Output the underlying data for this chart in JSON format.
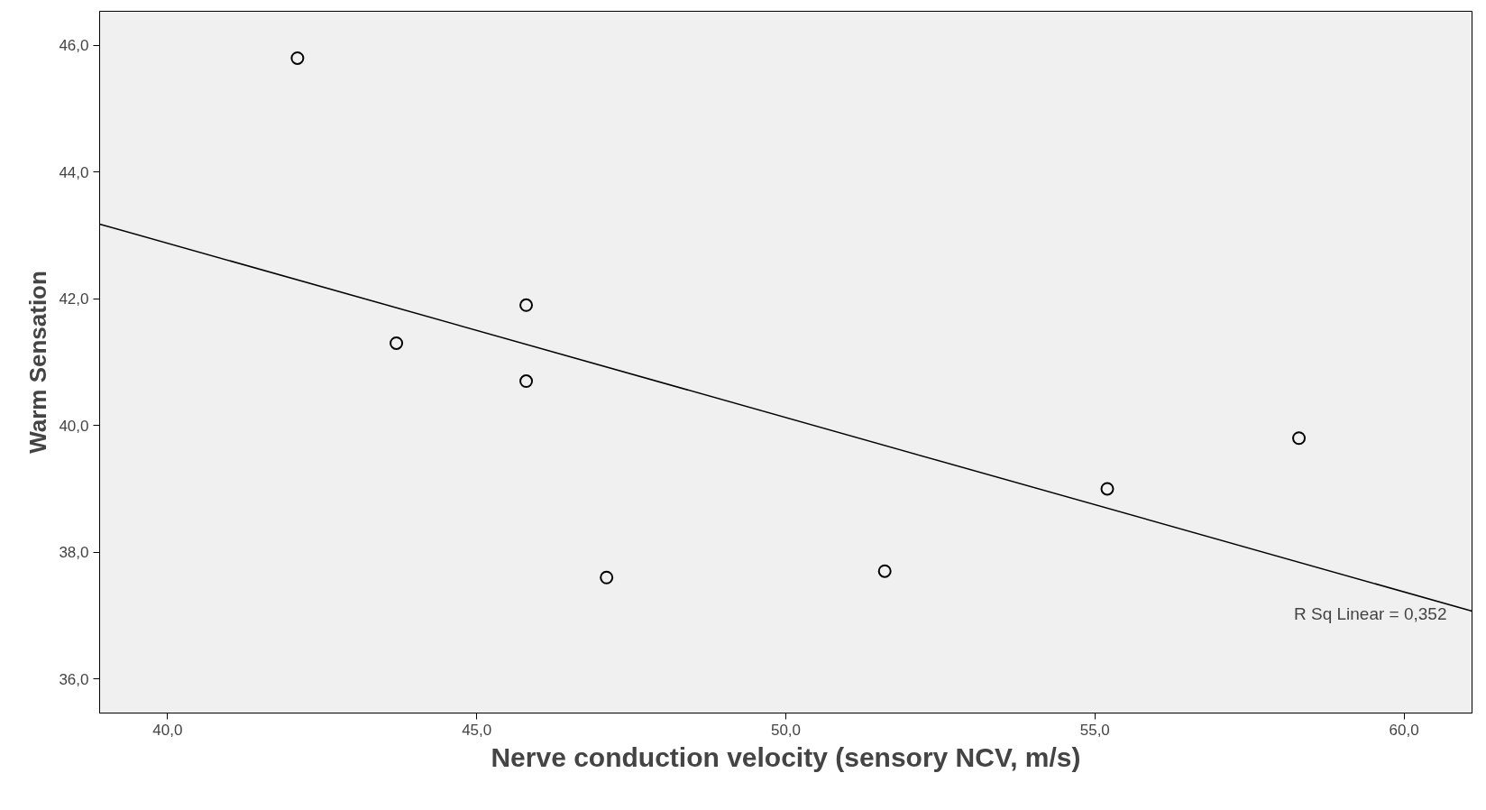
{
  "chart_data": {
    "type": "scatter",
    "xlabel": "Nerve conduction velocity (sensory NCV, m/s)",
    "ylabel": "Warm Sensation",
    "xlim": [
      38.9,
      61.1
    ],
    "ylim": [
      35.46,
      46.54
    ],
    "xticks": [
      {
        "value": 40,
        "label": "40,0"
      },
      {
        "value": 45,
        "label": "45,0"
      },
      {
        "value": 50,
        "label": "50,0"
      },
      {
        "value": 55,
        "label": "55,0"
      },
      {
        "value": 60,
        "label": "60,0"
      }
    ],
    "yticks": [
      {
        "value": 36,
        "label": "36,0"
      },
      {
        "value": 38,
        "label": "38,0"
      },
      {
        "value": 40,
        "label": "40,0"
      },
      {
        "value": 42,
        "label": "42,0"
      },
      {
        "value": 44,
        "label": "44,0"
      },
      {
        "value": 46,
        "label": "46,0"
      }
    ],
    "grid": false,
    "series": [
      {
        "marker": "circle",
        "color": "#000000",
        "x": [
          42.1,
          43.7,
          45.8,
          45.8,
          47.1,
          51.6,
          55.2,
          58.3
        ],
        "values": [
          45.8,
          41.3,
          41.9,
          40.7,
          37.6,
          37.7,
          39.0,
          39.8
        ]
      },
      {
        "type": "line",
        "marker": "none",
        "color": "#000000",
        "x": [
          38.9,
          61.1
        ],
        "values": [
          43.18,
          37.07
        ]
      }
    ],
    "annotations": [
      "R Sq Linear = 0,352"
    ]
  }
}
